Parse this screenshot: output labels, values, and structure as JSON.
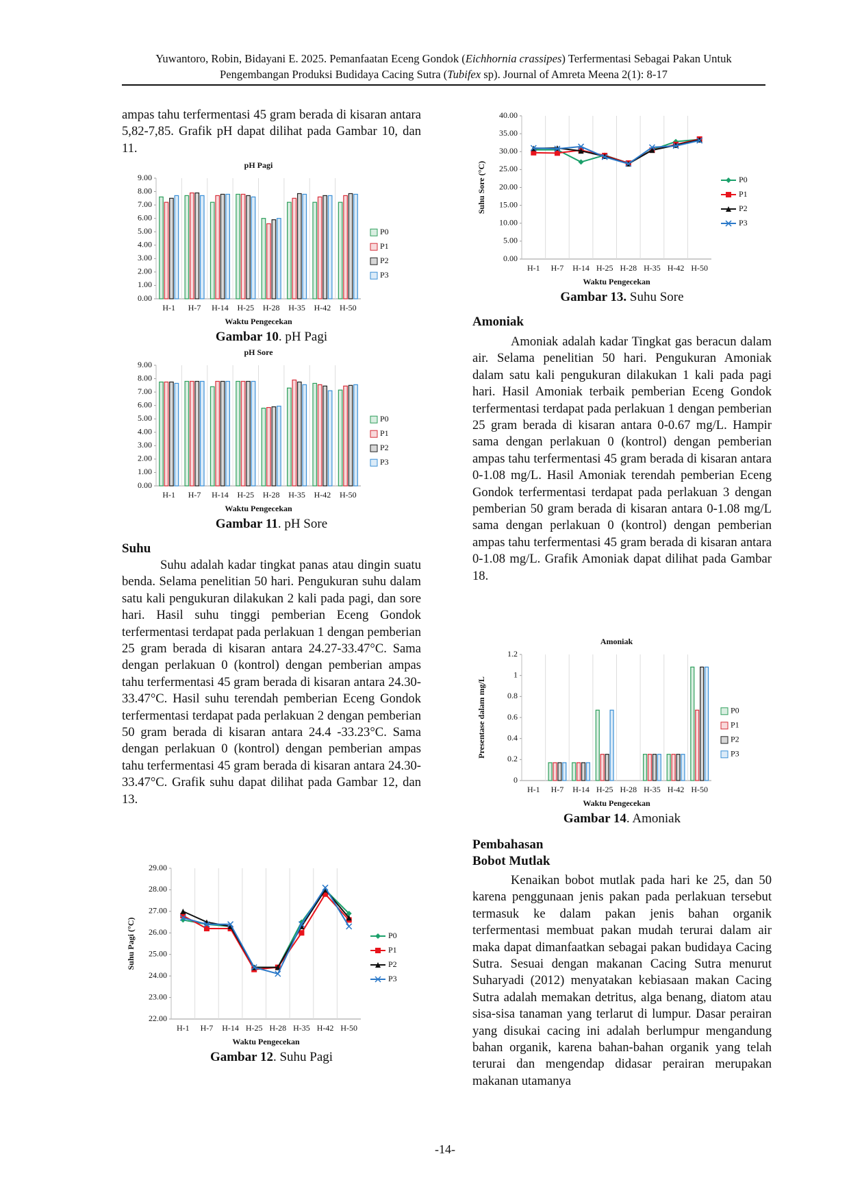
{
  "header": {
    "segments": [
      "Yuwantoro, Robin, Bidayani E. 2025. Pemanfaatan Eceng Gondok (",
      "Eichhornia crassipes",
      ") Terfermentasi Sebagai Pakan Untuk Pengembangan Produksi Budidaya Cacing Sutra (",
      "Tubifex",
      " sp). Journal of Amreta Meena 2(1): 8-17"
    ]
  },
  "left": {
    "intro": "ampas tahu terfermentasi 45 gram berada di kisaran antara 5,82-7,85. Grafik pH dapat dilihat pada Gambar 10, dan 11.",
    "suhu_heading": "Suhu",
    "suhu_text": "Suhu adalah kadar tingkat panas atau dingin suatu benda. Selama penelitian 50 hari. Pengukuran suhu dalam satu kali pengukuran dilakukan 2 kali pada pagi, dan sore hari. Hasil suhu tinggi pemberian Eceng Gondok terfermentasi terdapat pada perlakuan 1 dengan pemberian 25 gram berada di kisaran antara 24.27-33.47°C. Sama dengan perlakuan 0 (kontrol) dengan pemberian ampas tahu terfermentasi 45 gram berada di kisaran antara 24.30-33.47°C. Hasil suhu terendah pemberian Eceng Gondok terfermentasi terdapat pada perlakuan 2 dengan pemberian 50 gram berada di kisaran antara 24.4 -33.23°C. Sama dengan perlakuan 0 (kontrol) dengan pemberian ampas tahu terfermentasi 45 gram berada di kisaran antara 24.30-33.47°C. Grafik suhu dapat dilihat pada Gambar 12, dan 13."
  },
  "right": {
    "amoniak_heading": "Amoniak",
    "amoniak_text": "Amoniak adalah kadar Tingkat gas beracun dalam air. Selama penelitian 50 hari. Pengukuran Amoniak dalam satu kali pengukuran dilakukan 1 kali pada pagi hari. Hasil Amoniak terbaik pemberian Eceng Gondok terfermentasi terdapat pada perlakuan 1 dengan pemberian 25 gram berada di kisaran antara 0-0.67 mg/L. Hampir sama dengan perlakuan 0 (kontrol) dengan pemberian ampas tahu terfermentasi 45 gram berada di kisaran antara 0-1.08 mg/L. Hasil Amoniak terendah pemberian Eceng Gondok terfermentasi terdapat pada perlakuan 3 dengan pemberian 50 gram berada di kisaran antara 0-1.08 mg/L sama dengan perlakuan 0 (kontrol) dengan pemberian ampas tahu terfermentasi 45 gram berada di kisaran antara 0-1.08 mg/L. Grafik Amoniak dapat dilihat pada Gambar 18.",
    "pembahasan_heading": "Pembahasan",
    "bobot_heading": "Bobot Mutlak",
    "bobot_text": "Kenaikan bobot mutlak pada hari ke 25, dan 50 karena penggunaan jenis pakan pada perlakuan tersebut termasuk ke dalam pakan jenis bahan organik terfermentasi membuat pakan mudah terurai dalam air maka dapat dimanfaatkan sebagai pakan budidaya Cacing Sutra. Sesuai dengan makanan Cacing Sutra menurut Suharyadi (2012) menyatakan kebiasaan makan Cacing Sutra adalah memakan detritus, alga benang, diatom atau sisa-sisa tanaman yang terlarut di lumpur. Dasar perairan yang disukai cacing ini adalah berlumpur mengandung bahan organik, karena bahan-bahan organik yang telah terurai dan mengendap didasar perairan merupakan makanan utamanya"
  },
  "footer": {
    "page": "-14-"
  },
  "chart_data": [
    {
      "type": "bar",
      "title": "pH Pagi",
      "x_label": "Waktu Pengecekan",
      "caption": {
        "label": "Gambar 10",
        "text": ". pH Pagi"
      },
      "categories": [
        "H-1",
        "H-7",
        "H-14",
        "H-25",
        "H-28",
        "H-35",
        "H-42",
        "H-50"
      ],
      "ylim": [
        0,
        9
      ],
      "yticks": [
        {
          "value": 0,
          "label": "0.00"
        },
        {
          "value": 1,
          "label": "1.00"
        },
        {
          "value": 2,
          "label": "2.00"
        },
        {
          "value": 3,
          "label": "3.00"
        },
        {
          "value": 4,
          "label": "4.00"
        },
        {
          "value": 5,
          "label": "5.00"
        },
        {
          "value": 6,
          "label": "6.00"
        },
        {
          "value": 7,
          "label": "7.00"
        },
        {
          "value": 8,
          "label": "8.00"
        },
        {
          "value": 9,
          "label": "9.00"
        }
      ],
      "series": [
        {
          "name": "P0",
          "color": "#2e9e5b",
          "values": [
            7.6,
            7.7,
            7.2,
            7.8,
            6.0,
            7.2,
            7.2,
            7.2
          ]
        },
        {
          "name": "P1",
          "color": "#d62f3a",
          "values": [
            7.2,
            7.9,
            7.7,
            7.8,
            5.6,
            7.5,
            7.6,
            7.7
          ]
        },
        {
          "name": "P2",
          "color": "#222222",
          "values": [
            7.5,
            7.9,
            7.8,
            7.7,
            5.9,
            7.85,
            7.7,
            7.85
          ]
        },
        {
          "name": "P3",
          "color": "#3a8fd6",
          "values": [
            7.7,
            7.7,
            7.8,
            7.6,
            6.0,
            7.8,
            7.7,
            7.8
          ]
        }
      ]
    },
    {
      "type": "bar",
      "title": "pH Sore",
      "x_label": "Waktu Pengecekan",
      "caption": {
        "label": "Gambar 11",
        "text": ". pH Sore"
      },
      "categories": [
        "H-1",
        "H-7",
        "H-14",
        "H-25",
        "H-28",
        "H-35",
        "H-42",
        "H-50"
      ],
      "ylim": [
        0,
        9
      ],
      "yticks": [
        {
          "value": 0,
          "label": "0.00"
        },
        {
          "value": 1,
          "label": "1.00"
        },
        {
          "value": 2,
          "label": "2.00"
        },
        {
          "value": 3,
          "label": "3.00"
        },
        {
          "value": 4,
          "label": "4.00"
        },
        {
          "value": 5,
          "label": "5.00"
        },
        {
          "value": 6,
          "label": "6.00"
        },
        {
          "value": 7,
          "label": "7.00"
        },
        {
          "value": 8,
          "label": "8.00"
        },
        {
          "value": 9,
          "label": "9.00"
        }
      ],
      "series": [
        {
          "name": "P0",
          "color": "#2e9e5b",
          "values": [
            7.75,
            7.8,
            7.4,
            7.8,
            5.8,
            7.3,
            7.65,
            7.15
          ]
        },
        {
          "name": "P1",
          "color": "#d62f3a",
          "values": [
            7.75,
            7.8,
            7.8,
            7.8,
            5.85,
            7.9,
            7.55,
            7.45
          ]
        },
        {
          "name": "P2",
          "color": "#222222",
          "values": [
            7.75,
            7.8,
            7.8,
            7.8,
            5.9,
            7.75,
            7.45,
            7.5
          ]
        },
        {
          "name": "P3",
          "color": "#3a8fd6",
          "values": [
            7.65,
            7.8,
            7.8,
            7.8,
            5.95,
            7.55,
            7.1,
            7.55
          ]
        }
      ]
    },
    {
      "type": "line",
      "y_label": "Suhu Pagi (°C)",
      "x_label": "Waktu Pengecekan",
      "caption": {
        "label": "Gambar 12",
        "text": ". Suhu Pagi"
      },
      "categories": [
        "H-1",
        "H-7",
        "H-14",
        "H-25",
        "H-28",
        "H-35",
        "H-42",
        "H-50"
      ],
      "ylim": [
        22,
        29
      ],
      "yticks": [
        {
          "value": 22,
          "label": "22.00"
        },
        {
          "value": 23,
          "label": "23.00"
        },
        {
          "value": 24,
          "label": "24.00"
        },
        {
          "value": 25,
          "label": "25.00"
        },
        {
          "value": 26,
          "label": "26.00"
        },
        {
          "value": 27,
          "label": "27.00"
        },
        {
          "value": 28,
          "label": "28.00"
        },
        {
          "value": 29,
          "label": "29.00"
        }
      ],
      "series": [
        {
          "name": "P0",
          "color": "#1aa06a",
          "marker": "diamond",
          "values": [
            26.6,
            26.4,
            26.3,
            24.4,
            24.4,
            26.5,
            28.0,
            26.9
          ]
        },
        {
          "name": "P1",
          "color": "#e8141c",
          "marker": "square",
          "values": [
            26.8,
            26.2,
            26.2,
            24.3,
            24.4,
            26.0,
            27.8,
            26.6
          ]
        },
        {
          "name": "P2",
          "color": "#111111",
          "marker": "triangle",
          "values": [
            27.0,
            26.5,
            26.3,
            24.4,
            24.4,
            26.3,
            28.0,
            26.7
          ]
        },
        {
          "name": "P3",
          "color": "#2a78c8",
          "marker": "x",
          "values": [
            26.7,
            26.4,
            26.4,
            24.4,
            24.1,
            26.4,
            28.1,
            26.3
          ]
        }
      ]
    },
    {
      "type": "line",
      "y_label": "Suhu Sore (°C)",
      "x_label": "Waktu Pengecekan",
      "caption": {
        "label": "Gambar 13.",
        "text": " Suhu Sore"
      },
      "categories": [
        "H-1",
        "H-7",
        "H-14",
        "H-25",
        "H-28",
        "H-35",
        "H-42",
        "H-50"
      ],
      "ylim": [
        0,
        40
      ],
      "yticks": [
        {
          "value": 0,
          "label": "0.00"
        },
        {
          "value": 5,
          "label": "5.00"
        },
        {
          "value": 10,
          "label": "10.00"
        },
        {
          "value": 15,
          "label": "15.00"
        },
        {
          "value": 20,
          "label": "20.00"
        },
        {
          "value": 25,
          "label": "25.00"
        },
        {
          "value": 30,
          "label": "30.00"
        },
        {
          "value": 35,
          "label": "35.00"
        },
        {
          "value": 40,
          "label": "40.00"
        }
      ],
      "series": [
        {
          "name": "P0",
          "color": "#1aa06a",
          "marker": "diamond",
          "values": [
            30.5,
            30.5,
            27.1,
            29.0,
            26.8,
            30.5,
            32.8,
            33.4
          ]
        },
        {
          "name": "P1",
          "color": "#e8141c",
          "marker": "square",
          "values": [
            29.7,
            29.6,
            30.4,
            28.9,
            26.8,
            30.4,
            32.0,
            33.5
          ]
        },
        {
          "name": "P2",
          "color": "#111111",
          "marker": "triangle",
          "values": [
            30.9,
            31.0,
            30.2,
            28.7,
            26.6,
            30.4,
            31.8,
            33.3
          ]
        },
        {
          "name": "P3",
          "color": "#2a78c8",
          "marker": "x",
          "values": [
            31.0,
            30.8,
            31.4,
            28.5,
            26.6,
            31.2,
            31.6,
            33.1
          ]
        }
      ]
    },
    {
      "type": "bar",
      "title": "Amoniak",
      "y_label": "Presentase dalam mg/L",
      "x_label": "Waktu Pengecekan",
      "caption": {
        "label": "Gambar 14",
        "text": ". Amoniak"
      },
      "categories": [
        "H-1",
        "H-7",
        "H-14",
        "H-25",
        "H-28",
        "H-35",
        "H-42",
        "H-50"
      ],
      "ylim": [
        0,
        1.2
      ],
      "yticks": [
        0,
        0.2,
        0.4,
        0.6,
        0.8,
        1,
        1.2
      ],
      "series": [
        {
          "name": "P0",
          "color": "#2e9e5b",
          "values": [
            0,
            0.17,
            0.17,
            0.67,
            0,
            0.25,
            0.25,
            1.08
          ]
        },
        {
          "name": "P1",
          "color": "#d62f3a",
          "values": [
            0,
            0.17,
            0.17,
            0.25,
            0,
            0.25,
            0.25,
            0.67
          ]
        },
        {
          "name": "P2",
          "color": "#222222",
          "values": [
            0,
            0.17,
            0.17,
            0.25,
            0,
            0.25,
            0.25,
            1.08
          ]
        },
        {
          "name": "P3",
          "color": "#3a8fd6",
          "values": [
            0,
            0.17,
            0.17,
            0.67,
            0,
            0.25,
            0.25,
            1.08
          ]
        }
      ]
    }
  ]
}
